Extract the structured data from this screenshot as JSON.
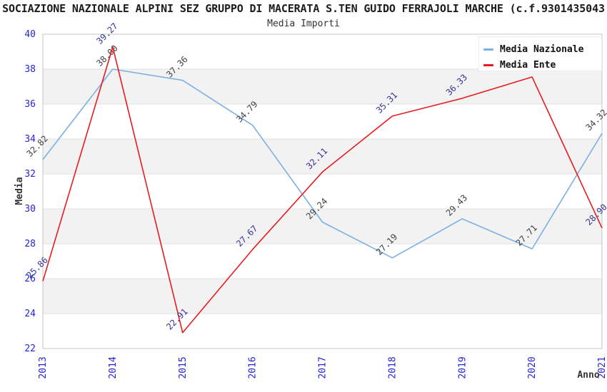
{
  "header": {
    "title": "SOCIAZIONE NAZIONALE ALPINI SEZ GRUPPO DI MACERATA S.TEN GUIDO FERRAJOLI MARCHE (c.f.9301435043",
    "subtitle": "Media Importi"
  },
  "chart_data": {
    "type": "line",
    "title": "Media Importi",
    "xlabel": "Anno",
    "ylabel": "Media",
    "categories": [
      "2013",
      "2014",
      "2015",
      "2016",
      "2017",
      "2018",
      "2019",
      "2020",
      "2021"
    ],
    "ylim": [
      22,
      40
    ],
    "ytick_step": 2,
    "yticks": [
      22,
      24,
      26,
      28,
      30,
      32,
      34,
      36,
      38,
      40
    ],
    "grid": "horizontal gridlines with alternating gray bands",
    "legend_position": "top-right",
    "series": [
      {
        "name": "Media Nazionale",
        "color": "#7cb0e2",
        "label_color": "#3f3f3f",
        "values": [
          32.82,
          38.0,
          37.36,
          34.79,
          29.24,
          27.19,
          29.43,
          27.71,
          34.32
        ],
        "labels": [
          "32.82",
          "38.00",
          "37.36",
          "34.79",
          "29.24",
          "27.19",
          "29.43",
          "27.71",
          "34.32"
        ]
      },
      {
        "name": "Media Ente",
        "color": "#e81c1e",
        "label_color": "#333399",
        "values": [
          25.86,
          39.27,
          22.91,
          27.67,
          32.11,
          35.31,
          36.33,
          37.55,
          28.9
        ],
        "labels": [
          "25.86",
          "39.27",
          "22.91",
          "27.67",
          "32.11",
          "35.31",
          "36.33",
          "",
          "28.90"
        ]
      }
    ],
    "style": {
      "tick_color": "#2424d6",
      "band_fill": "#f2f2f2",
      "gridline_color": "#e2e2e2",
      "border_color": "#c4c4c4",
      "axis_label_color": "#333333"
    }
  }
}
